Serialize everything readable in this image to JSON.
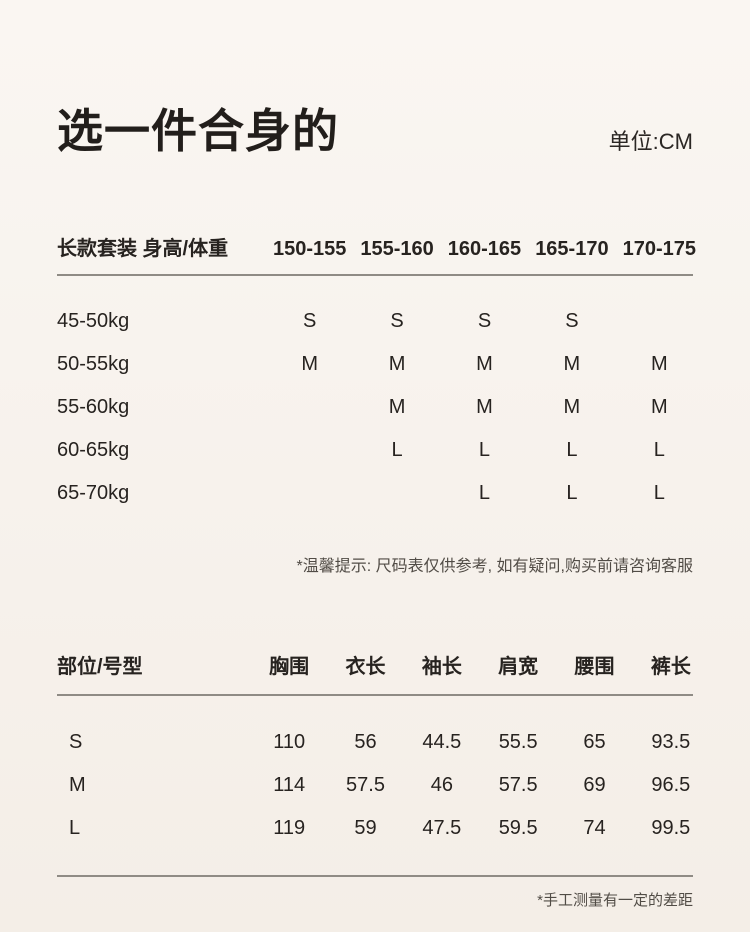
{
  "page": {
    "title": "选一件合身的",
    "unit_label": "单位:CM"
  },
  "colors": {
    "background_top": "#faf6f2",
    "background_bottom": "#f4eee7",
    "text": "#272320",
    "divider": "#8f8b85",
    "note_text": "#514c46"
  },
  "size_chart": {
    "corner_label": "长款套装 身高/体重",
    "columns": [
      "150-155",
      "155-160",
      "160-165",
      "165-170",
      "170-175"
    ],
    "rows": [
      {
        "label": "45-50kg",
        "values": [
          "S",
          "S",
          "S",
          "S",
          ""
        ]
      },
      {
        "label": "50-55kg",
        "values": [
          "M",
          "M",
          "M",
          "M",
          "M"
        ]
      },
      {
        "label": "55-60kg",
        "values": [
          "",
          "M",
          "M",
          "M",
          "M"
        ]
      },
      {
        "label": "60-65kg",
        "values": [
          "",
          "L",
          "L",
          "L",
          "L"
        ]
      },
      {
        "label": "65-70kg",
        "values": [
          "",
          "",
          "L",
          "L",
          "L"
        ]
      }
    ],
    "note": "*温馨提示: 尺码表仅供参考, 如有疑问,购买前请咨询客服"
  },
  "measurement_chart": {
    "corner_label": "部位/号型",
    "columns": [
      "胸围",
      "衣长",
      "袖长",
      "肩宽",
      "腰围",
      "裤长"
    ],
    "rows": [
      {
        "label": "S",
        "values": [
          "110",
          "56",
          "44.5",
          "55.5",
          "65",
          "93.5"
        ]
      },
      {
        "label": "M",
        "values": [
          "114",
          "57.5",
          "46",
          "57.5",
          "69",
          "96.5"
        ]
      },
      {
        "label": "L",
        "values": [
          "119",
          "59",
          "47.5",
          "59.5",
          "74",
          "99.5"
        ]
      }
    ],
    "note": "*手工测量有一定的差距"
  }
}
